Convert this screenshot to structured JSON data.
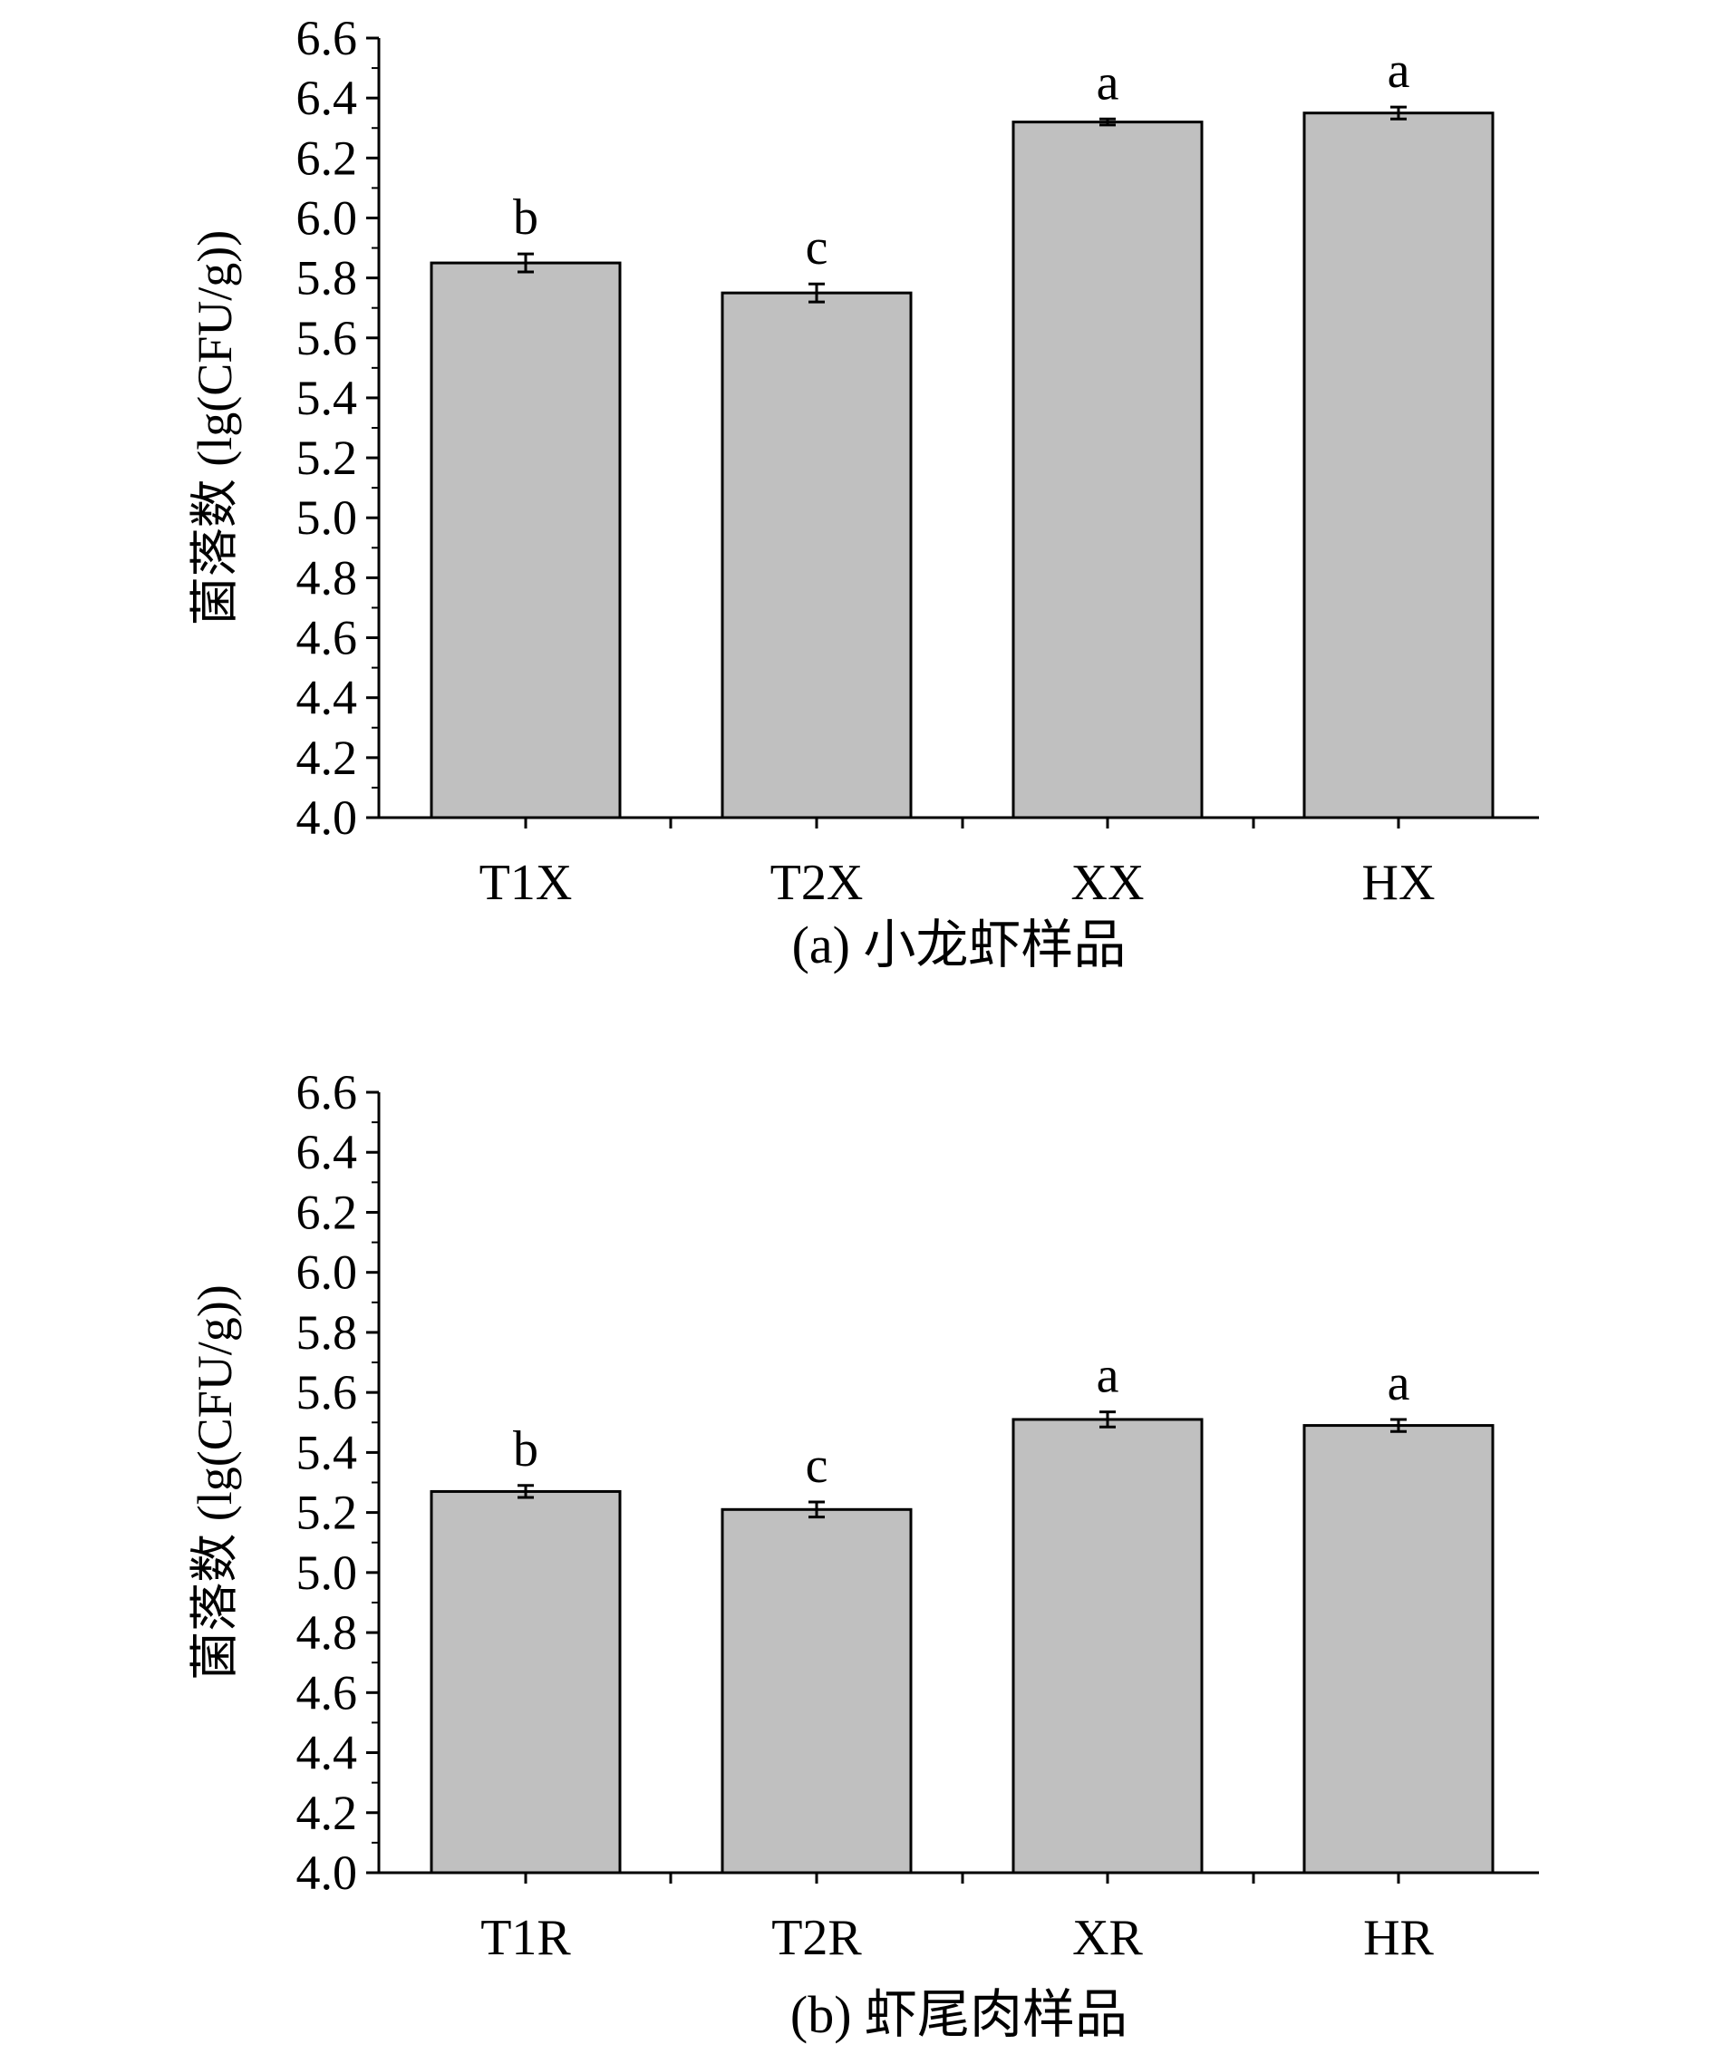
{
  "chart_data": [
    {
      "type": "bar",
      "caption": "(a) 小龙虾样品",
      "ylabel": "菌落数 (lg(CFU/g))",
      "xlabel": "",
      "ylim": [
        4.0,
        6.6
      ],
      "yticks": [
        "4.0",
        "4.2",
        "4.4",
        "4.6",
        "4.8",
        "5.0",
        "5.2",
        "5.4",
        "5.6",
        "5.8",
        "6.0",
        "6.2",
        "6.4",
        "6.6"
      ],
      "categories": [
        "T1X",
        "T2X",
        "XX",
        "HX"
      ],
      "values": [
        5.85,
        5.75,
        6.32,
        6.35
      ],
      "errors": [
        0.03,
        0.03,
        0.01,
        0.02
      ],
      "significance": [
        "b",
        "c",
        "a",
        "a"
      ],
      "bar_color": "#c0c0c0",
      "grid": false
    },
    {
      "type": "bar",
      "caption": "(b) 虾尾肉样品",
      "ylabel": "菌落数 (lg(CFU/g))",
      "xlabel": "",
      "ylim": [
        4.0,
        6.6
      ],
      "yticks": [
        "4.0",
        "4.2",
        "4.4",
        "4.6",
        "4.8",
        "5.0",
        "5.2",
        "5.4",
        "5.6",
        "5.8",
        "6.0",
        "6.2",
        "6.4",
        "6.6"
      ],
      "categories": [
        "T1R",
        "T2R",
        "XR",
        "HR"
      ],
      "values": [
        5.27,
        5.21,
        5.51,
        5.49
      ],
      "errors": [
        0.02,
        0.025,
        0.025,
        0.02
      ],
      "significance": [
        "b",
        "c",
        "a",
        "a"
      ],
      "bar_color": "#c0c0c0",
      "grid": false
    }
  ]
}
